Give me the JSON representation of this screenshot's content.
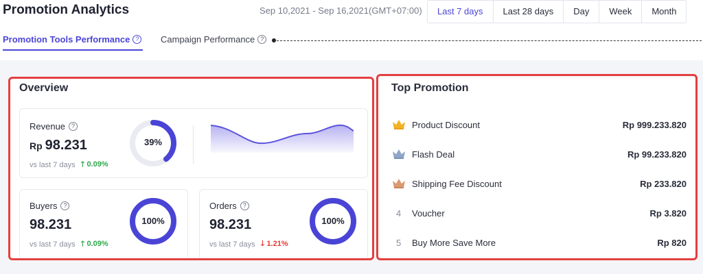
{
  "header": {
    "title": "Promotion Analytics",
    "date_range": "Sep 10,2021 - Sep 16,2021(GMT+07:00)",
    "periods": [
      "Last 7 days",
      "Last 28 days",
      "Day",
      "Week",
      "Month"
    ],
    "active_period": "Last 7 days"
  },
  "tabs": [
    {
      "label": "Promotion Tools Performance",
      "active": true
    },
    {
      "label": "Campaign Performance",
      "active": false
    }
  ],
  "overview": {
    "title": "Overview",
    "revenue": {
      "label": "Revenue",
      "currency": "Rp",
      "value": "98.231",
      "compare_label": "vs last 7 days",
      "delta": "0.09%",
      "progress_label": "39%",
      "progress": 0.39
    },
    "buyers": {
      "label": "Buyers",
      "value": "98.231",
      "compare_label": "vs last 7 days",
      "delta": "0.09%",
      "progress_label": "100%",
      "progress": 1.0
    },
    "orders": {
      "label": "Orders",
      "value": "98.231",
      "compare_label": "vs last 7 days",
      "delta": "1.21%",
      "progress_label": "100%",
      "progress": 1.0
    }
  },
  "top_promotion": {
    "title": "Top Promotion",
    "items": [
      {
        "rank": "1",
        "name": "Product Discount",
        "value": "Rp 999.233.820",
        "icon": "gold-crown-icon"
      },
      {
        "rank": "2",
        "name": "Flash Deal",
        "value": "Rp 99.233.820",
        "icon": "silver-crown-icon"
      },
      {
        "rank": "3",
        "name": "Shipping Fee Discount",
        "value": "Rp 233.820",
        "icon": "bronze-crown-icon"
      },
      {
        "rank": "4",
        "name": "Voucher",
        "value": "Rp 3.820"
      },
      {
        "rank": "5",
        "name": "Buy More Save More",
        "value": "Rp 820"
      }
    ]
  },
  "colors": {
    "accent": "#4a44d6",
    "ring_track": "#e9ebf1",
    "positive": "#2fa84b",
    "negative": "#e53935",
    "highlight_outline": "#e43f3f",
    "gold": "#f2b224",
    "silver": "#8fa6c8",
    "bronze": "#d99a72"
  }
}
